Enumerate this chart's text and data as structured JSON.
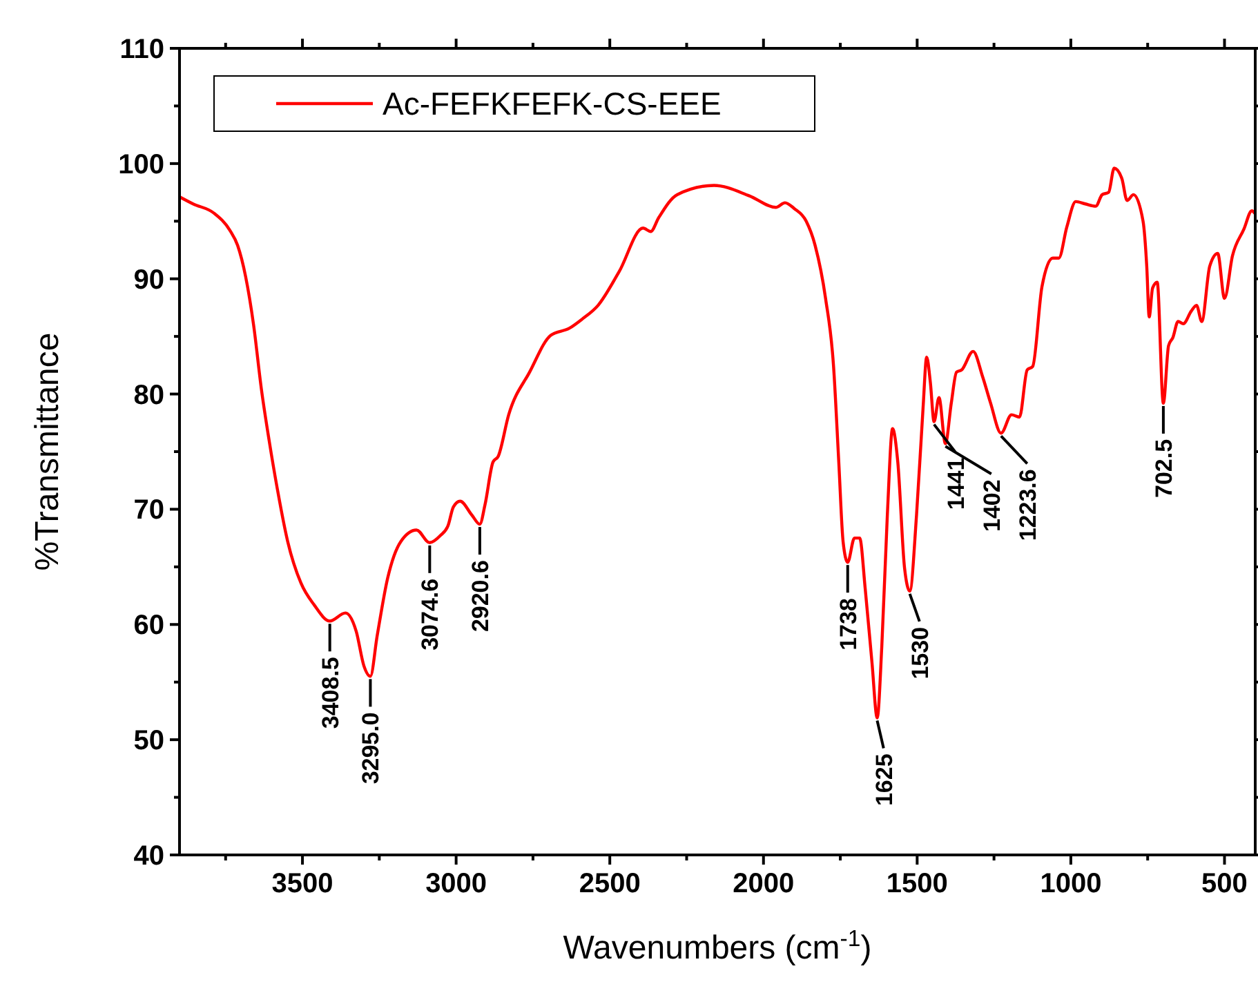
{
  "chart_data": {
    "type": "line",
    "xlabel": "Wavenumbers (cm$^{-1}$)",
    "ylabel": "%Transmittance",
    "xlim": [
      3900,
      400
    ],
    "ylim": [
      40,
      110
    ],
    "xticks": [
      {
        "value": 3750,
        "label": null
      },
      3500,
      {
        "value": 3250,
        "label": null
      },
      3000,
      {
        "value": 2750,
        "label": null
      },
      2500,
      {
        "value": 2250,
        "label": null
      },
      2000,
      {
        "value": 1750,
        "label": null
      },
      1500,
      {
        "value": 1250,
        "label": null
      },
      1000,
      {
        "value": 750,
        "label": null
      },
      500
    ],
    "yticks": [
      40,
      {
        "value": 45,
        "label": null
      },
      50,
      {
        "value": 55,
        "label": null
      },
      60,
      {
        "value": 65,
        "label": null
      },
      70,
      {
        "value": 75,
        "label": null
      },
      80,
      {
        "value": 85,
        "label": null
      },
      90,
      {
        "value": 95,
        "label": null
      },
      100,
      {
        "value": 105,
        "label": null
      },
      110
    ],
    "legend": "top left",
    "grid": false,
    "marker": "none",
    "line_style": "solid",
    "series": [
      {
        "name": "Ac-FEFKFEFK-CS-EEE",
        "color": "#ff0000",
        "x": [
          3899,
          3856,
          3788,
          3736,
          3711,
          3685,
          3659,
          3634,
          3608,
          3582,
          3548,
          3505,
          3462,
          3411,
          3360,
          3325,
          3300,
          3279,
          3257,
          3223,
          3180,
          3129,
          3086,
          3052,
          3026,
          3009,
          2987,
          2949,
          2923,
          2906,
          2880,
          2863,
          2829,
          2761,
          2692,
          2632,
          2590,
          2538,
          2470,
          2392,
          2367,
          2341,
          2281,
          2161,
          2046,
          1960,
          1930,
          1900,
          1861,
          1832,
          1798,
          1772,
          1755,
          1741,
          1726,
          1704,
          1687,
          1669,
          1647,
          1630,
          1615,
          1597,
          1580,
          1563,
          1541,
          1524,
          1502,
          1481,
          1469,
          1457,
          1445,
          1429,
          1408,
          1389,
          1372,
          1355,
          1318,
          1287,
          1261,
          1227,
          1193,
          1167,
          1142,
          1124,
          1094,
          1059,
          1039,
          1013,
          984,
          953,
          919,
          898,
          877,
          859,
          834,
          817,
          796,
          765,
          753,
          745,
          734,
          719,
          699,
          682,
          668,
          651,
          634,
          608,
          591,
          574,
          548,
          522,
          500,
          474,
          437,
          411,
          402
        ],
        "values": [
          97.1,
          96.5,
          95.7,
          94.2,
          92.9,
          90.2,
          86.0,
          80.5,
          75.9,
          71.8,
          67.2,
          63.6,
          61.7,
          60.3,
          61.0,
          59.4,
          56.4,
          55.5,
          59.0,
          64.0,
          67.2,
          68.2,
          67.1,
          67.7,
          68.6,
          70.2,
          70.7,
          69.5,
          68.7,
          70.4,
          74.1,
          74.6,
          78.2,
          81.9,
          85.1,
          85.7,
          86.5,
          87.7,
          90.6,
          94.4,
          94.1,
          95.3,
          97.3,
          98.1,
          97.2,
          96.2,
          96.6,
          96.1,
          95.0,
          92.9,
          88.3,
          82.4,
          74.1,
          67.2,
          65.4,
          67.5,
          67.5,
          63.1,
          56.7,
          51.9,
          58.1,
          69.5,
          77.0,
          74.1,
          64.9,
          62.9,
          69.5,
          78.7,
          83.2,
          81.0,
          77.6,
          79.7,
          75.7,
          79.2,
          81.9,
          82.1,
          83.7,
          81.5,
          79.2,
          76.6,
          78.2,
          78.0,
          82.1,
          82.4,
          89.3,
          91.8,
          91.8,
          94.5,
          96.7,
          96.5,
          96.3,
          97.3,
          97.5,
          99.6,
          98.7,
          96.8,
          97.3,
          95.0,
          91.1,
          86.7,
          89.2,
          89.7,
          79.2,
          84.2,
          84.9,
          86.3,
          86.1,
          87.2,
          87.7,
          86.3,
          91.1,
          92.2,
          88.3,
          92.0,
          94.3,
          95.9,
          95.7
        ]
      }
    ],
    "annotations": [
      {
        "text": "3408.5",
        "x": 3411,
        "y": 60.3
      },
      {
        "text": "3295.0",
        "x": 3279,
        "y": 55.5
      },
      {
        "text": "3074.6",
        "x": 3086,
        "y": 67.1
      },
      {
        "text": "2920.6",
        "x": 2923,
        "y": 68.7
      },
      {
        "text": "1738",
        "x": 1726,
        "y": 65.4
      },
      {
        "text": "1625",
        "x": 1630,
        "y": 51.9
      },
      {
        "text": "1530",
        "x": 1524,
        "y": 62.9
      },
      {
        "text": "1441",
        "x": 1445,
        "y": 77.6
      },
      {
        "text": "1402",
        "x": 1408,
        "y": 75.7
      },
      {
        "text": "1223.6",
        "x": 1227,
        "y": 76.6
      },
      {
        "text": "702.5",
        "x": 699,
        "y": 79.2
      }
    ]
  }
}
